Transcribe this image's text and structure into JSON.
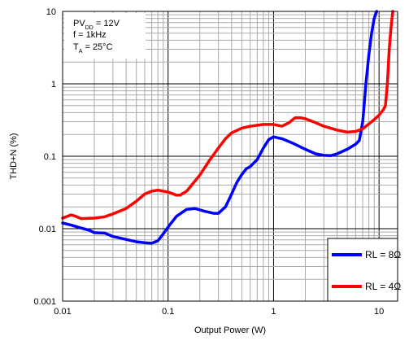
{
  "chart_data": {
    "type": "line",
    "x_scale": "log",
    "y_scale": "log",
    "xlim": [
      0.01,
      15
    ],
    "ylim": [
      0.001,
      10
    ],
    "xlabel": "Output Power (W)",
    "ylabel": "THD+N (%)",
    "x_ticks": [
      {
        "value": 0.01,
        "label": "0.01"
      },
      {
        "value": 0.1,
        "label": "0.1"
      },
      {
        "value": 1,
        "label": "1"
      },
      {
        "value": 10,
        "label": "10"
      }
    ],
    "y_ticks": [
      {
        "value": 0.001,
        "label": "0.001"
      },
      {
        "value": 0.01,
        "label": "0.01"
      },
      {
        "value": 0.1,
        "label": "0.1"
      },
      {
        "value": 1,
        "label": "1"
      },
      {
        "value": 10,
        "label": "10"
      }
    ],
    "grid": true,
    "conditions": [
      {
        "main": "PV",
        "sub": "DD",
        "rest": " = 12V"
      },
      {
        "main": "f = 1kHz",
        "sub": "",
        "rest": ""
      },
      {
        "main": "T",
        "sub": "A",
        "rest": " = 25°C"
      }
    ],
    "legend_position": "bottom-right",
    "series": [
      {
        "name": "RL = 8Ω",
        "color": "#0000ff",
        "points": [
          [
            0.01,
            0.012
          ],
          [
            0.012,
            0.0112
          ],
          [
            0.015,
            0.0102
          ],
          [
            0.018,
            0.0095
          ],
          [
            0.02,
            0.0088
          ],
          [
            0.025,
            0.0087
          ],
          [
            0.03,
            0.0078
          ],
          [
            0.04,
            0.0071
          ],
          [
            0.05,
            0.0066
          ],
          [
            0.06,
            0.0064
          ],
          [
            0.07,
            0.0063
          ],
          [
            0.08,
            0.0068
          ],
          [
            0.09,
            0.0085
          ],
          [
            0.1,
            0.0105
          ],
          [
            0.12,
            0.0148
          ],
          [
            0.15,
            0.0185
          ],
          [
            0.18,
            0.019
          ],
          [
            0.22,
            0.0175
          ],
          [
            0.27,
            0.0163
          ],
          [
            0.3,
            0.0163
          ],
          [
            0.35,
            0.02
          ],
          [
            0.4,
            0.03
          ],
          [
            0.45,
            0.044
          ],
          [
            0.5,
            0.056
          ],
          [
            0.55,
            0.067
          ],
          [
            0.6,
            0.072
          ],
          [
            0.7,
            0.09
          ],
          [
            0.8,
            0.13
          ],
          [
            0.9,
            0.17
          ],
          [
            1.0,
            0.185
          ],
          [
            1.2,
            0.175
          ],
          [
            1.5,
            0.153
          ],
          [
            2.0,
            0.125
          ],
          [
            2.5,
            0.108
          ],
          [
            3.0,
            0.103
          ],
          [
            3.5,
            0.102
          ],
          [
            4.0,
            0.108
          ],
          [
            5.0,
            0.125
          ],
          [
            6.0,
            0.147
          ],
          [
            6.5,
            0.165
          ],
          [
            7.0,
            0.3
          ],
          [
            7.5,
            1.0
          ],
          [
            8.0,
            2.5
          ],
          [
            8.5,
            5.0
          ],
          [
            9.0,
            8.0
          ],
          [
            9.5,
            10.0
          ]
        ]
      },
      {
        "name": "RL = 4Ω",
        "color": "#ff0000",
        "points": [
          [
            0.01,
            0.014
          ],
          [
            0.012,
            0.0155
          ],
          [
            0.013,
            0.015
          ],
          [
            0.015,
            0.0138
          ],
          [
            0.02,
            0.014
          ],
          [
            0.025,
            0.0146
          ],
          [
            0.03,
            0.016
          ],
          [
            0.04,
            0.019
          ],
          [
            0.05,
            0.024
          ],
          [
            0.06,
            0.03
          ],
          [
            0.07,
            0.033
          ],
          [
            0.08,
            0.034
          ],
          [
            0.09,
            0.033
          ],
          [
            0.1,
            0.032
          ],
          [
            0.12,
            0.029
          ],
          [
            0.13,
            0.029
          ],
          [
            0.15,
            0.033
          ],
          [
            0.2,
            0.055
          ],
          [
            0.25,
            0.09
          ],
          [
            0.3,
            0.13
          ],
          [
            0.35,
            0.175
          ],
          [
            0.4,
            0.21
          ],
          [
            0.5,
            0.245
          ],
          [
            0.6,
            0.26
          ],
          [
            0.8,
            0.275
          ],
          [
            1.0,
            0.275
          ],
          [
            1.2,
            0.26
          ],
          [
            1.4,
            0.29
          ],
          [
            1.6,
            0.34
          ],
          [
            1.8,
            0.34
          ],
          [
            2.0,
            0.33
          ],
          [
            2.5,
            0.29
          ],
          [
            3.0,
            0.26
          ],
          [
            4.0,
            0.23
          ],
          [
            5.0,
            0.215
          ],
          [
            6.0,
            0.22
          ],
          [
            7.0,
            0.24
          ],
          [
            8.0,
            0.28
          ],
          [
            9.0,
            0.32
          ],
          [
            10.0,
            0.37
          ],
          [
            11.0,
            0.44
          ],
          [
            11.5,
            0.5
          ],
          [
            12.0,
            1.0
          ],
          [
            12.5,
            3.0
          ],
          [
            13.0,
            6.0
          ],
          [
            13.5,
            10.0
          ]
        ]
      }
    ]
  }
}
